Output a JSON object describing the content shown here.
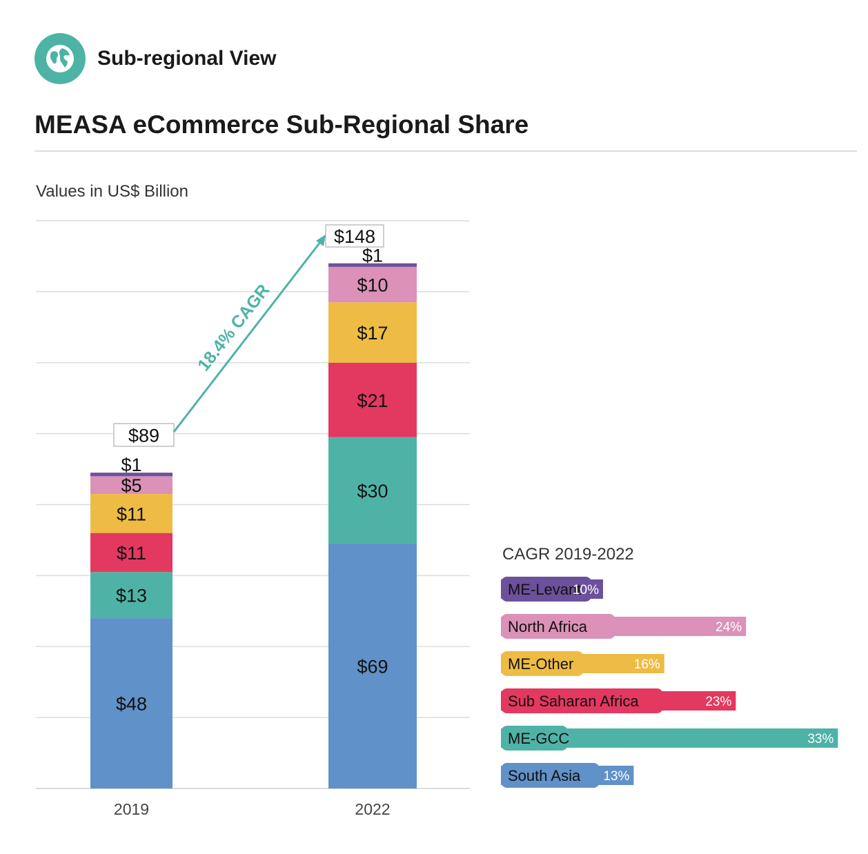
{
  "header": {
    "label": "Sub-regional View",
    "icon": "globe-icon"
  },
  "chart_data": {
    "type": "bar",
    "title": "MEASA eCommerce Sub-Regional Share",
    "subtitle": "Values in US$ Billion",
    "categories": [
      "2019",
      "2022"
    ],
    "series": [
      {
        "name": "South Asia",
        "color": "#6091c8",
        "values": [
          48,
          69
        ],
        "labels": [
          "$48",
          "$69"
        ]
      },
      {
        "name": "ME-GCC",
        "color": "#4eb3a6",
        "values": [
          13,
          30
        ],
        "labels": [
          "$13",
          "$30"
        ]
      },
      {
        "name": "Sub Saharan Africa",
        "color": "#e3385f",
        "values": [
          11,
          21
        ],
        "labels": [
          "$11",
          "$21"
        ]
      },
      {
        "name": "ME-Other",
        "color": "#eebc45",
        "values": [
          11,
          17
        ],
        "labels": [
          "$11",
          "$17"
        ]
      },
      {
        "name": "North Africa",
        "color": "#db91b8",
        "values": [
          5,
          10
        ],
        "labels": [
          "$5",
          "$10"
        ]
      },
      {
        "name": "ME-Levant",
        "color": "#6b519b",
        "values": [
          1,
          1
        ],
        "labels": [
          "$1",
          "$1"
        ]
      }
    ],
    "totals": [
      89,
      148
    ],
    "total_labels": [
      "$89",
      "$148"
    ],
    "growth_annotation": "18.4% CAGR",
    "ylim": [
      0,
      160
    ],
    "grid": true,
    "cagr_panel": {
      "title": "CAGR 2019-2022",
      "items": [
        {
          "name": "ME-Levant",
          "value": 10,
          "label": "10%",
          "color": "#6b519b"
        },
        {
          "name": "North Africa",
          "value": 24,
          "label": "24%",
          "color": "#db91b8"
        },
        {
          "name": "ME-Other",
          "value": 16,
          "label": "16%",
          "color": "#eebc45"
        },
        {
          "name": "Sub Saharan Africa",
          "value": 23,
          "label": "23%",
          "color": "#e3385f"
        },
        {
          "name": "ME-GCC",
          "value": 33,
          "label": "33%",
          "color": "#4eb3a6"
        },
        {
          "name": "South Asia",
          "value": 13,
          "label": "13%",
          "color": "#6091c8"
        }
      ]
    }
  }
}
